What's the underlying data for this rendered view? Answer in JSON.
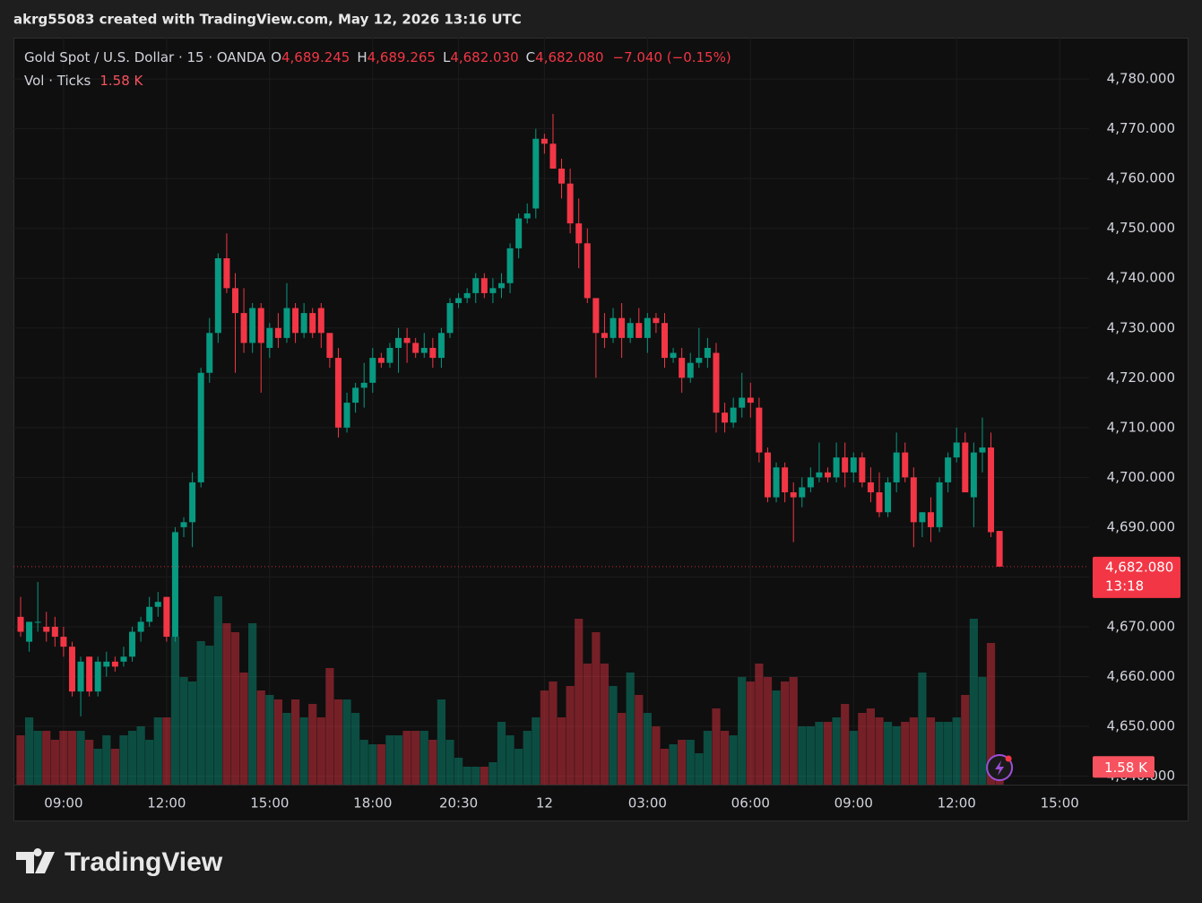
{
  "header": {
    "text": "akrg55083 created with TradingView.com, May 12, 2026 13:16 UTC"
  },
  "footer": {
    "brand": "TradingView"
  },
  "chart_data": {
    "type": "candlestick",
    "legend": {
      "symbol": "Gold Spot / U.S. Dollar · 15 · OANDA",
      "o": "O",
      "open": "4,689.245",
      "h": "H",
      "high": "4,689.265",
      "l": "L",
      "low": "4,682.030",
      "c": "C",
      "close": "4,682.080",
      "change": "−7.040 (−0.15%)",
      "volume_name": "Vol · Ticks"
    },
    "last_price_label": "4,682.080",
    "countdown": "13:18",
    "last_volume_label": "1.58 K",
    "up_color": "#089981",
    "down_color": "#f23645",
    "ylim": [
      4638.3,
      4788.3
    ],
    "yticks": [
      {
        "value": 4640,
        "label": "4,640.000"
      },
      {
        "value": 4650,
        "label": "4,650.000"
      },
      {
        "value": 4660,
        "label": "4,660.000"
      },
      {
        "value": 4670,
        "label": "4,670.000"
      },
      {
        "value": 4680,
        "label": "4,680.000"
      },
      {
        "value": 4690,
        "label": "4,690.000"
      },
      {
        "value": 4700,
        "label": "4,700.000"
      },
      {
        "value": 4710,
        "label": "4,710.000"
      },
      {
        "value": 4720,
        "label": "4,720.000"
      },
      {
        "value": 4730,
        "label": "4,730.000"
      },
      {
        "value": 4740,
        "label": "4,740.000"
      },
      {
        "value": 4750,
        "label": "4,750.000"
      },
      {
        "value": 4760,
        "label": "4,760.000"
      },
      {
        "value": 4770,
        "label": "4,770.000"
      },
      {
        "value": 4780,
        "label": "4,780.000"
      }
    ],
    "grid": true,
    "categories": [
      null,
      null,
      null,
      null,
      null,
      "09:00",
      null,
      null,
      null,
      null,
      null,
      null,
      null,
      null,
      null,
      null,
      null,
      "12:00",
      null,
      null,
      null,
      null,
      null,
      null,
      null,
      null,
      null,
      null,
      null,
      "15:00",
      null,
      null,
      null,
      null,
      null,
      null,
      null,
      null,
      null,
      null,
      null,
      "18:00",
      null,
      null,
      null,
      null,
      null,
      null,
      null,
      null,
      null,
      "20:30",
      null,
      null,
      null,
      null,
      null,
      null,
      null,
      null,
      null,
      "12",
      null,
      null,
      null,
      null,
      null,
      null,
      null,
      null,
      null,
      null,
      null,
      "03:00",
      null,
      null,
      null,
      null,
      null,
      null,
      null,
      null,
      null,
      null,
      null,
      "06:00",
      null,
      null,
      null,
      null,
      null,
      null,
      null,
      null,
      null,
      null,
      null,
      "09:00",
      null,
      null,
      null,
      null,
      null,
      null,
      null,
      null,
      null,
      null,
      null,
      "12:00",
      null,
      null,
      null,
      null,
      null,
      null,
      null,
      null,
      null,
      null,
      null,
      "15:00"
    ],
    "open": [
      4672,
      4667,
      4671,
      4670,
      4670,
      4668,
      4666,
      4657,
      4664,
      4657,
      4662,
      4663,
      4663,
      4664,
      4669,
      4671,
      4674,
      4676,
      4668,
      4690,
      4691,
      4699,
      4721,
      4729,
      4744,
      4738,
      4733,
      4727,
      4734,
      4726,
      4730,
      4728,
      4734,
      4729,
      4733,
      4734,
      4729,
      4724,
      4710,
      4715,
      4718,
      4719,
      4724,
      4723,
      4726,
      4728,
      4727,
      4725,
      4726,
      4724,
      4729,
      4735,
      4736,
      4737,
      4740,
      4737,
      4738,
      4739,
      4746,
      4752,
      4754,
      4768,
      4767,
      4762,
      4759,
      4751,
      4747,
      4736,
      4729,
      4728,
      4732,
      4728,
      4731,
      4728,
      4732,
      4731,
      4724,
      4724,
      4720,
      4723,
      4724,
      4725,
      4713,
      4711,
      4714,
      4716,
      4714,
      4705,
      4696,
      4702,
      4697,
      4696,
      4698,
      4700,
      4701,
      4700,
      4704,
      4701,
      4704,
      4699,
      4697,
      4693,
      4699,
      4705,
      4700,
      4691,
      4693,
      4690,
      4699,
      4704,
      4707,
      4696,
      4705,
      4706,
      4689.245,
      null,
      null,
      null,
      null,
      null,
      null,
      null
    ],
    "high": [
      4676,
      4671,
      4679,
      4673,
      4672,
      4670,
      4667,
      4664,
      4664,
      4664,
      4665,
      4664,
      4666,
      4670,
      4672,
      4676,
      4677,
      4676,
      4690,
      4692,
      4701,
      4722,
      4732,
      4745,
      4749,
      4741,
      4738,
      4735,
      4735,
      4731,
      4733,
      4739,
      4735,
      4735,
      4734,
      4735,
      4729,
      4726,
      4717,
      4719,
      4723,
      4726,
      4725,
      4727,
      4730,
      4730,
      4728,
      4729,
      4728,
      4730,
      4736,
      4737,
      4738,
      4741,
      4741,
      4740,
      4741,
      4747,
      4753,
      4755,
      4770,
      4769,
      4773,
      4764,
      4762,
      4756,
      4750,
      4736,
      4733,
      4734,
      4735,
      4732,
      4734,
      4733,
      4733,
      4733,
      4726,
      4726,
      4725,
      4730,
      4728,
      4727,
      4715,
      4716,
      4721,
      4719,
      4716,
      4706,
      4703,
      4703,
      4699,
      4700,
      4702,
      4707,
      4702,
      4707,
      4707,
      4705,
      4705,
      4702,
      4701,
      4700,
      4709,
      4707,
      4702,
      4693,
      4696,
      4700,
      4705,
      4710,
      4709,
      4707,
      4712,
      4709,
      4689.265,
      null,
      null,
      null,
      null,
      null,
      null,
      null
    ],
    "low": [
      4668,
      4665,
      4669,
      4667,
      4666,
      4664,
      4656,
      4652,
      4656,
      4656,
      4660,
      4661,
      4662,
      4663,
      4667,
      4670,
      4672,
      4667,
      4667,
      4688,
      4686,
      4698,
      4719,
      4727,
      4737,
      4721,
      4725,
      4725,
      4717,
      4724,
      4726,
      4727,
      4727,
      4728,
      4728,
      4726,
      4722,
      4708,
      4709,
      4713,
      4714,
      4717,
      4722,
      4722,
      4721,
      4723,
      4724,
      4724,
      4722,
      4722,
      4728,
      4734,
      4735,
      4735,
      4736,
      4735,
      4736,
      4737,
      4744,
      4751,
      4752,
      4765,
      4762,
      4756,
      4749,
      4742,
      4735,
      4720,
      4726,
      4727,
      4724,
      4727,
      4728,
      4725,
      4729,
      4722,
      4723,
      4717,
      4719,
      4722,
      4722,
      4709,
      4709,
      4710,
      4712,
      4712,
      4703,
      4695,
      4695,
      4695,
      4687,
      4694,
      4697,
      4699,
      4699,
      4699,
      4698,
      4699,
      4698,
      4695,
      4692,
      4692,
      4697,
      4699,
      4686,
      4688,
      4687,
      4689,
      4697,
      4703,
      4697,
      4690,
      4701,
      4688,
      4682.03,
      null,
      null,
      null,
      null,
      null,
      null,
      null
    ],
    "close": [
      4669,
      4671,
      4671,
      4669,
      4668,
      4666,
      4657,
      4663,
      4657,
      4663,
      4663,
      4662,
      4664,
      4669,
      4671,
      4674,
      4675,
      4668,
      4689,
      4691,
      4699,
      4721,
      4729,
      4744,
      4738,
      4733,
      4727,
      4734,
      4727,
      4730,
      4728,
      4734,
      4729,
      4733,
      4729,
      4729,
      4724,
      4710,
      4715,
      4718,
      4719,
      4724,
      4723,
      4726,
      4728,
      4727,
      4725,
      4726,
      4724,
      4729,
      4735,
      4736,
      4737,
      4740,
      4737,
      4738,
      4739,
      4746,
      4752,
      4753,
      4768,
      4767,
      4762,
      4759,
      4751,
      4747,
      4736,
      4729,
      4728,
      4732,
      4728,
      4731,
      4728,
      4732,
      4731,
      4724,
      4725,
      4720,
      4723,
      4724,
      4726,
      4713,
      4711,
      4714,
      4716,
      4715,
      4705,
      4696,
      4702,
      4697,
      4696,
      4698,
      4700,
      4701,
      4700,
      4704,
      4701,
      4704,
      4699,
      4697,
      4693,
      4699,
      4705,
      4700,
      4691,
      4693,
      4690,
      4699,
      4704,
      4707,
      4697,
      4705,
      4706,
      4689,
      4682.08,
      null,
      null,
      null,
      null,
      null,
      null,
      null
    ],
    "volume": [
      4400,
      6000,
      4800,
      4800,
      4000,
      4800,
      4800,
      4800,
      4000,
      3200,
      4400,
      3200,
      4400,
      4800,
      5200,
      4000,
      6000,
      6000,
      13200,
      9600,
      9200,
      12800,
      12400,
      16800,
      14400,
      13600,
      10000,
      14400,
      8400,
      8000,
      7600,
      6400,
      7600,
      6000,
      7200,
      6000,
      10400,
      7600,
      7600,
      6400,
      4000,
      3600,
      3600,
      4400,
      4400,
      4800,
      4800,
      4800,
      4000,
      7600,
      4000,
      2400,
      1600,
      1600,
      1600,
      2000,
      5600,
      4400,
      3200,
      4800,
      6000,
      8400,
      9200,
      6000,
      8800,
      14800,
      10800,
      13600,
      10800,
      8800,
      6400,
      10000,
      8000,
      6400,
      5200,
      3200,
      3600,
      4000,
      4000,
      2800,
      4800,
      6800,
      4800,
      4400,
      9600,
      9200,
      10800,
      9600,
      8400,
      9200,
      9600,
      5200,
      5200,
      5600,
      5600,
      6000,
      7200,
      4800,
      6400,
      6800,
      6000,
      5600,
      5200,
      5600,
      6000,
      10000,
      6000,
      5600,
      5600,
      6000,
      8000,
      14800,
      9600,
      12640,
      1580,
      null,
      null,
      null,
      null,
      null,
      null,
      null
    ]
  }
}
